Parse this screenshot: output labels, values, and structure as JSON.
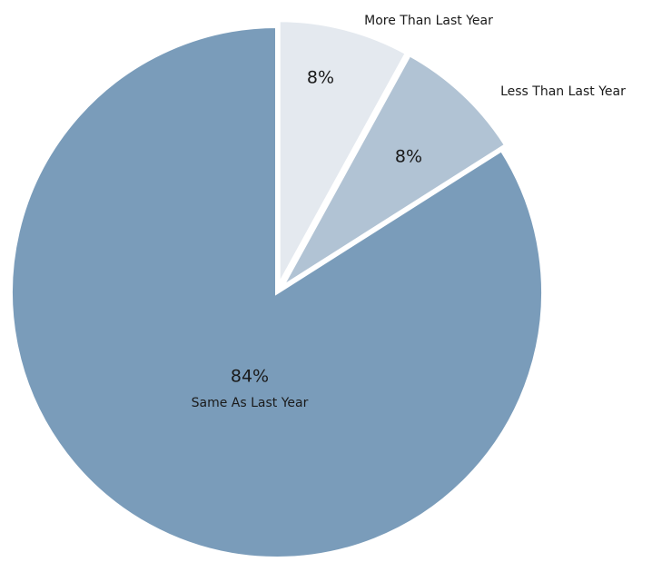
{
  "chart_data": {
    "type": "pie",
    "slices": [
      {
        "label": "More Than Last Year",
        "value": 8,
        "display": "8%",
        "color": "#e4e9ef"
      },
      {
        "label": "Less Than Last Year",
        "value": 8,
        "display": "8%",
        "color": "#b1c3d4"
      },
      {
        "label": "Same As Last Year",
        "value": 84,
        "display": "84%",
        "color": "#7a9cba"
      }
    ],
    "title": "",
    "legend": "none",
    "separator_color": "#ffffff"
  }
}
